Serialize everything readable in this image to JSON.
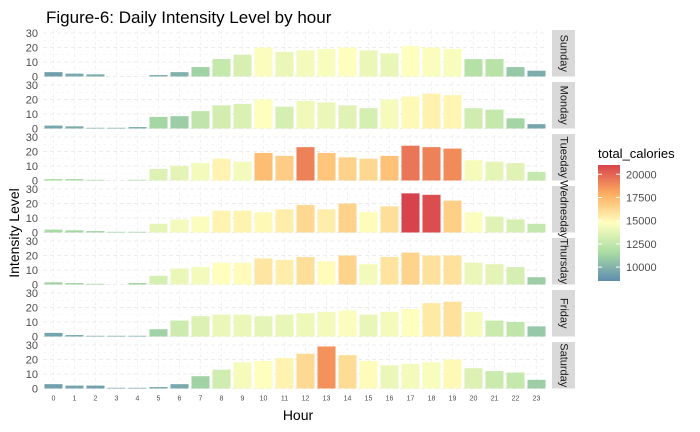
{
  "chart_data": {
    "type": "bar",
    "title": "Figure-6: Daily Intensity Level by hour",
    "xlabel": "Hour",
    "ylabel": "Intensity Level",
    "hours": [
      "0",
      "1",
      "2",
      "3",
      "4",
      "5",
      "6",
      "7",
      "8",
      "9",
      "10",
      "11",
      "12",
      "13",
      "14",
      "15",
      "16",
      "17",
      "18",
      "19",
      "20",
      "21",
      "22",
      "23"
    ],
    "ylim": [
      0,
      30
    ],
    "yticks": [
      "0",
      "10",
      "20",
      "30"
    ],
    "grid": true,
    "legend": {
      "title": "total_calories",
      "position": "right",
      "ticks": [
        "20000",
        "17500",
        "15000",
        "12500",
        "10000"
      ],
      "tick_values": [
        20000,
        17500,
        15000,
        12500,
        10000
      ],
      "range": [
        8500,
        21000
      ],
      "colors": [
        "#5e8db0",
        "#abdda4",
        "#ffffbf",
        "#fdae61",
        "#d7434c"
      ]
    },
    "panels": [
      {
        "day": "Sunday",
        "intensity": [
          3,
          2,
          1.5,
          0,
          0,
          1,
          3,
          6.5,
          12,
          15,
          20,
          17,
          18,
          19,
          20,
          18,
          16,
          21,
          20,
          19,
          12,
          12,
          6.5,
          4
        ],
        "calories": [
          9200,
          9600,
          9800,
          10000,
          10000,
          9800,
          9900,
          11200,
          12600,
          13300,
          14600,
          14000,
          14300,
          14500,
          14700,
          14000,
          13900,
          14700,
          14600,
          14500,
          12000,
          12100,
          10800,
          9700
        ]
      },
      {
        "day": "Monday",
        "intensity": [
          2,
          1.5,
          0.5,
          0.5,
          1,
          8,
          8.5,
          12,
          16,
          17,
          20,
          15,
          19,
          18,
          16,
          14,
          20,
          22,
          24,
          23,
          14,
          13,
          7,
          3
        ],
        "calories": [
          9500,
          9700,
          9900,
          9900,
          9700,
          11400,
          11000,
          12400,
          13100,
          13400,
          14700,
          13200,
          14200,
          14000,
          13600,
          13200,
          14400,
          15000,
          15300,
          15100,
          13000,
          12600,
          11300,
          9500
        ]
      },
      {
        "day": "Tuesday",
        "intensity": [
          1,
          1,
          0.5,
          0,
          0.5,
          8,
          10,
          12,
          15,
          13,
          19,
          17,
          23,
          19,
          16,
          15,
          17,
          24,
          23,
          22,
          14,
          13,
          12,
          6
        ],
        "calories": [
          11700,
          11600,
          11700,
          12000,
          11800,
          13500,
          13700,
          14300,
          15200,
          14300,
          17300,
          16700,
          19200,
          17000,
          16500,
          16300,
          17100,
          19500,
          19200,
          18900,
          14400,
          13800,
          13600,
          12600
        ]
      },
      {
        "day": "Wednesday",
        "intensity": [
          2,
          1.5,
          1,
          0.5,
          0.5,
          6,
          9,
          11,
          15,
          15,
          14,
          16,
          19,
          16,
          20,
          14,
          18,
          27,
          26,
          22,
          14,
          11,
          9,
          6
        ],
        "calories": [
          11500,
          11400,
          11300,
          11200,
          11200,
          13800,
          14300,
          14600,
          15200,
          15200,
          15000,
          15400,
          16300,
          15400,
          16500,
          14900,
          16000,
          21500,
          20700,
          16600,
          14600,
          13600,
          13200,
          12500
        ]
      },
      {
        "day": "Thursday",
        "intensity": [
          1.5,
          1,
          0.5,
          0,
          1,
          6,
          11,
          12,
          15,
          15,
          18,
          17,
          19,
          16,
          20,
          14,
          19,
          22,
          20,
          20,
          15,
          14,
          12,
          5
        ],
        "calories": [
          11200,
          11300,
          11300,
          11500,
          11200,
          13200,
          14000,
          14300,
          14800,
          14900,
          15700,
          15400,
          16000,
          14900,
          16400,
          14300,
          15800,
          16400,
          15900,
          15900,
          14000,
          13700,
          13200,
          11000
        ]
      },
      {
        "day": "Friday",
        "intensity": [
          2.5,
          1,
          0.5,
          0.5,
          0.5,
          5,
          11,
          14,
          15,
          15,
          14,
          15,
          16,
          17,
          18,
          15,
          17,
          19,
          23,
          24,
          17,
          11,
          10,
          7
        ],
        "calories": [
          9400,
          9600,
          9700,
          9700,
          9700,
          11200,
          12900,
          13500,
          14000,
          14000,
          13800,
          13900,
          14100,
          14300,
          14600,
          13900,
          14300,
          14700,
          15600,
          15900,
          14400,
          12800,
          12400,
          10800
        ]
      },
      {
        "day": "Saturday",
        "intensity": [
          3,
          2,
          2,
          0.5,
          0.5,
          1,
          3,
          8.5,
          13,
          18,
          19,
          21,
          24,
          29,
          23,
          19,
          16,
          17,
          18,
          20,
          14,
          12,
          11,
          6
        ],
        "calories": [
          9300,
          9400,
          9300,
          9700,
          9700,
          9600,
          9600,
          11200,
          13000,
          14400,
          14700,
          15200,
          16200,
          18700,
          16100,
          14900,
          14000,
          14300,
          14500,
          15000,
          13500,
          12800,
          12600,
          11000
        ]
      }
    ]
  }
}
